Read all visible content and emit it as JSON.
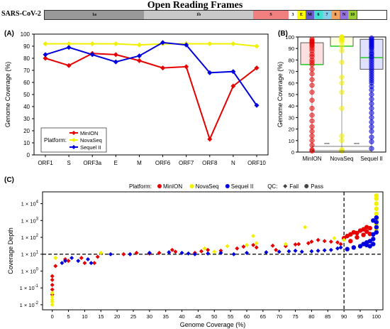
{
  "header": {
    "title": "Open Reading Frames",
    "genome_name": "SARS-CoV-2",
    "segments": [
      {
        "label": "1a",
        "color": "#999999"
      },
      {
        "label": "1b",
        "color": "#c8c8c8"
      },
      {
        "label": "S",
        "color": "#f08080"
      },
      {
        "label": "3",
        "color": "#ffffff"
      },
      {
        "label": "E",
        "color": "#ffff00"
      },
      {
        "label": "M",
        "color": "#6a5acd"
      },
      {
        "label": "6",
        "color": "#40e0d0"
      },
      {
        "label": "7",
        "color": "#87ceeb"
      },
      {
        "label": "8",
        "color": "#f4a460"
      },
      {
        "label": "N",
        "color": "#9370db"
      },
      {
        "label": "10",
        "color": "#9acd32"
      }
    ]
  },
  "panels": {
    "a": "(A)",
    "b": "(B)",
    "c": "(C)"
  },
  "colors": {
    "minion": "#e60000",
    "novaseq": "#f0f000",
    "sequel": "#0000dd",
    "median_line": "#22cc22"
  },
  "chart_data": [
    {
      "type": "line",
      "ylabel": "Genome Coverage (%)",
      "categories": [
        "ORF1",
        "S",
        "ORF3a",
        "E",
        "M",
        "ORF6",
        "ORF7",
        "ORF8",
        "N",
        "ORF10"
      ],
      "ylim": [
        0,
        100
      ],
      "yticks": [
        0,
        10,
        20,
        30,
        40,
        50,
        60,
        70,
        80,
        90,
        100
      ],
      "legend": {
        "title": "Platform:",
        "placement": "bottom-left"
      },
      "series": [
        {
          "name": "MinION",
          "values": [
            80,
            74,
            84,
            83,
            78,
            72,
            73,
            13,
            57,
            72
          ]
        },
        {
          "name": "NovaSeq",
          "values": [
            92,
            92,
            92,
            92,
            91,
            92,
            92,
            92,
            92,
            90
          ]
        },
        {
          "name": "Sequel II",
          "values": [
            83,
            89,
            83,
            77,
            82,
            93,
            91,
            68,
            69,
            41
          ]
        }
      ]
    },
    {
      "type": "scatter",
      "ylabel": "Genome Coverage (%)",
      "categories": [
        "MinION",
        "NovaSeq",
        "Sequel II"
      ],
      "ylim": [
        0,
        100
      ],
      "yticks": [
        0,
        10,
        20,
        30,
        40,
        50,
        60,
        70,
        80,
        90,
        100
      ],
      "boxes": [
        {
          "name": "MinION",
          "q1": 76,
          "median": 76,
          "q3": 95,
          "points": [
            98,
            97,
            96,
            96,
            95,
            94,
            93,
            92,
            90,
            88,
            85,
            83,
            80,
            78,
            76,
            72,
            68,
            63,
            58,
            52,
            45,
            38,
            32,
            27,
            22,
            18,
            14,
            10,
            6,
            2,
            1
          ]
        },
        {
          "name": "NovaSeq",
          "q1": 92,
          "median": 92,
          "q3": 100,
          "points": [
            100,
            100,
            100,
            100,
            99,
            99,
            98,
            97,
            96,
            92,
            88,
            78,
            65,
            60,
            52,
            38,
            14,
            10,
            2,
            1
          ]
        },
        {
          "name": "Sequel II",
          "q1": 72,
          "median": 82,
          "q3": 98,
          "points": [
            99,
            98,
            97,
            96,
            95,
            94,
            93,
            92,
            91,
            90,
            88,
            86,
            85,
            83,
            82,
            80,
            78,
            76,
            74,
            72,
            70,
            68,
            66,
            64,
            62,
            60,
            57,
            54,
            50,
            46,
            42,
            38,
            34,
            30,
            26,
            22,
            18,
            13,
            9,
            3
          ]
        }
      ],
      "significance": [
        "****",
        "****",
        "****"
      ]
    },
    {
      "type": "scatter",
      "xlabel": "Genome Coverage (%)",
      "ylabel": "Coverage Depth",
      "xlim": [
        -3,
        102
      ],
      "xticks": [
        0,
        5,
        10,
        15,
        20,
        25,
        30,
        35,
        40,
        45,
        50,
        55,
        60,
        65,
        70,
        75,
        80,
        85,
        90,
        95,
        100
      ],
      "ylim_log10": [
        -2.3,
        4.7
      ],
      "yticks": [
        "1 × 10^-2",
        "1 × 10^-1",
        "1 × 10^0",
        "1 × 10^1",
        "1 × 10^2",
        "1 × 10^3",
        "1 × 10^4"
      ],
      "thresholds": {
        "x": 90,
        "y": 10
      },
      "legend": {
        "platform_title": "Platform:",
        "items": [
          "MinION",
          "NovaSeq",
          "Sequel II"
        ],
        "qc_title": "QC:",
        "qc_items": [
          "Fail",
          "Pass"
        ],
        "placement": "top"
      },
      "series": [
        {
          "name": "MinION",
          "marker": "diamond",
          "points": [
            [
              0,
              0.5
            ],
            [
              0,
              0.3
            ],
            [
              0,
              0.15
            ],
            [
              0,
              0.08
            ],
            [
              0,
              0.04
            ],
            [
              1,
              2
            ],
            [
              4,
              5
            ],
            [
              5,
              4
            ],
            [
              9,
              6
            ],
            [
              10,
              3
            ],
            [
              13,
              3
            ],
            [
              14,
              7
            ],
            [
              22,
              10
            ],
            [
              26,
              12
            ],
            [
              30,
              11
            ],
            [
              33,
              12
            ],
            [
              37,
              18
            ],
            [
              38,
              14
            ],
            [
              44,
              12
            ],
            [
              46,
              15
            ],
            [
              48,
              18
            ],
            [
              52,
              16
            ],
            [
              57,
              22
            ],
            [
              59,
              28
            ],
            [
              62,
              35
            ],
            [
              63,
              25
            ],
            [
              68,
              32
            ],
            [
              69,
              18
            ],
            [
              72,
              30
            ],
            [
              75,
              38
            ],
            [
              76,
              40
            ],
            [
              79,
              45
            ],
            [
              80,
              55
            ],
            [
              82,
              70
            ],
            [
              84,
              60
            ],
            [
              86,
              55
            ],
            [
              88,
              50
            ],
            [
              89,
              40
            ]
          ]
        },
        {
          "name": "MinION",
          "marker": "circle",
          "points": [
            [
              90,
              90
            ],
            [
              91,
              120
            ],
            [
              92,
              150
            ],
            [
              93,
              200
            ],
            [
              94,
              180
            ],
            [
              95,
              250
            ],
            [
              96,
              300
            ],
            [
              97,
              220
            ],
            [
              98,
              350
            ],
            [
              92,
              60
            ],
            [
              94,
              100
            ],
            [
              96,
              140
            ],
            [
              97,
              400
            ],
            [
              98,
              160
            ]
          ]
        },
        {
          "name": "NovaSeq",
          "marker": "diamond",
          "points": [
            [
              0,
              0.05
            ],
            [
              0,
              0.03
            ],
            [
              0,
              0.02
            ],
            [
              0,
              0.015
            ],
            [
              0,
              0.01
            ],
            [
              1,
              6
            ],
            [
              15,
              12
            ],
            [
              47,
              22
            ],
            [
              50,
              14
            ],
            [
              54,
              30
            ],
            [
              60,
              35
            ],
            [
              62,
              120
            ],
            [
              63,
              45
            ],
            [
              72,
              40
            ],
            [
              78,
              400
            ],
            [
              87,
              90
            ],
            [
              90,
              70
            ]
          ]
        },
        {
          "name": "NovaSeq",
          "marker": "circle",
          "points": [
            [
              100,
              300
            ],
            [
              100,
              600
            ],
            [
              100,
              1200
            ],
            [
              100,
              2500
            ],
            [
              100,
              5000
            ],
            [
              100,
              10000
            ],
            [
              100,
              20000
            ],
            [
              100,
              30000
            ]
          ]
        },
        {
          "name": "Sequel II",
          "marker": "diamond",
          "points": [
            [
              3,
              3
            ],
            [
              4,
              4
            ],
            [
              6,
              6
            ],
            [
              8,
              4
            ],
            [
              11,
              5
            ],
            [
              12,
              3
            ],
            [
              18,
              10
            ],
            [
              24,
              10
            ],
            [
              30,
              12
            ],
            [
              36,
              13
            ],
            [
              40,
              12
            ],
            [
              42,
              11
            ],
            [
              44,
              10
            ],
            [
              48,
              11
            ],
            [
              52,
              12
            ],
            [
              56,
              10
            ],
            [
              60,
              12
            ],
            [
              66,
              13
            ],
            [
              70,
              14
            ],
            [
              73,
              15
            ],
            [
              75,
              16
            ],
            [
              77,
              14
            ],
            [
              80,
              15
            ],
            [
              82,
              16
            ],
            [
              84,
              17
            ],
            [
              86,
              18
            ],
            [
              88,
              22
            ],
            [
              89,
              25
            ]
          ]
        },
        {
          "name": "Sequel II",
          "marker": "circle",
          "points": [
            [
              91,
              20
            ],
            [
              93,
              25
            ],
            [
              95,
              30
            ],
            [
              96,
              40
            ],
            [
              97,
              50
            ],
            [
              98,
              60
            ],
            [
              99,
              80
            ],
            [
              99,
              150
            ],
            [
              100,
              200
            ],
            [
              100,
              400
            ],
            [
              100,
              800
            ],
            [
              99,
              1000
            ],
            [
              100,
              1500
            ],
            [
              98,
              30
            ],
            [
              97,
              35
            ],
            [
              99,
              40
            ]
          ]
        }
      ]
    }
  ]
}
